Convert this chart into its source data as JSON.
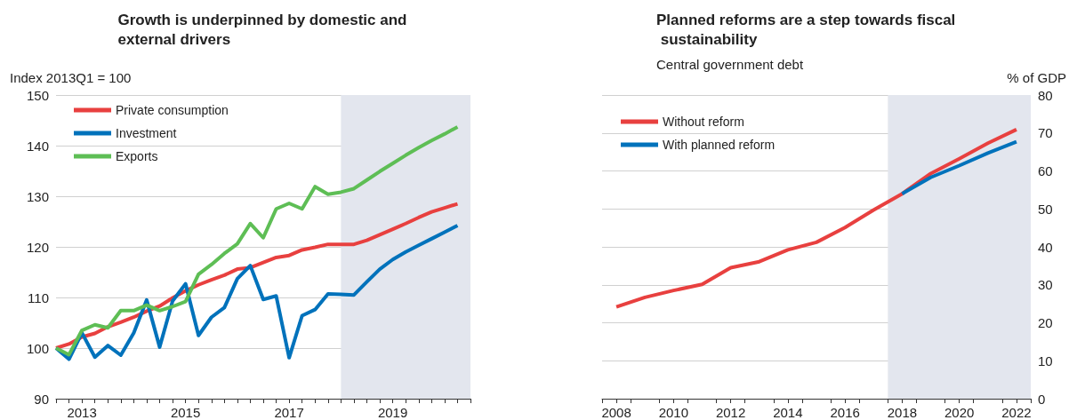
{
  "chart_data": [
    {
      "type": "line",
      "title": "Growth is underpinned by domestic and external drivers",
      "ylabel": "Index 2013Q1 = 100",
      "x": [
        2013,
        2013.25,
        2013.5,
        2013.75,
        2014,
        2014.25,
        2014.5,
        2014.75,
        2015,
        2015.25,
        2015.5,
        2015.75,
        2016,
        2016.25,
        2016.5,
        2016.75,
        2017,
        2017.25,
        2017.5,
        2017.75,
        2018,
        2018.25,
        2018.5,
        2018.75,
        2019,
        2019.25,
        2019.5,
        2019.75,
        2020,
        2020.25,
        2020.5,
        2020.75
      ],
      "series": [
        {
          "name": "Private consumption",
          "color": "#e8403f",
          "values": [
            100,
            100.8,
            102.2,
            102.9,
            104.2,
            105.1,
            106.1,
            107.3,
            108.3,
            109.9,
            111.3,
            112.5,
            113.5,
            114.4,
            115.6,
            115.9,
            116.9,
            117.9,
            118.3,
            119.4,
            119.9,
            120.5,
            120.5,
            120.5,
            121.3,
            122.4,
            123.5,
            124.6,
            125.8,
            126.9,
            127.7,
            128.5
          ]
        },
        {
          "name": "Investment",
          "color": "#0072bb",
          "values": [
            100,
            97.8,
            103,
            98.2,
            100.5,
            98.6,
            103,
            109.5,
            100.2,
            109.3,
            112.7,
            102.5,
            106.1,
            108,
            113.7,
            116.3,
            109.6,
            110.3,
            98.1,
            106.4,
            107.6,
            110.7,
            110.6,
            110.5,
            113.1,
            115.6,
            117.5,
            119,
            120.3,
            121.6,
            122.9,
            124.2
          ]
        },
        {
          "name": "Exports",
          "color": "#5ebe55",
          "values": [
            100,
            98.7,
            103.5,
            104.6,
            104,
            107.4,
            107.4,
            108.5,
            107.4,
            108.2,
            109.2,
            114.6,
            116.5,
            118.7,
            120.6,
            124.6,
            121.8,
            127.5,
            128.6,
            127.5,
            131.9,
            130.4,
            130.8,
            131.5,
            133.2,
            134.9,
            136.5,
            138.1,
            139.6,
            141,
            142.3,
            143.7
          ]
        }
      ],
      "xlim": [
        2013,
        2021
      ],
      "xticks": [
        {
          "value": 2013,
          "label": null
        },
        {
          "value": 2013.25,
          "label": null
        },
        {
          "value": 2013.5,
          "label": "2013"
        },
        {
          "value": 2013.75,
          "label": null
        },
        {
          "value": 2014,
          "label": null
        },
        {
          "value": 2014.25,
          "label": null
        },
        {
          "value": 2014.5,
          "label": null
        },
        {
          "value": 2014.75,
          "label": null
        },
        {
          "value": 2015,
          "label": null
        },
        {
          "value": 2015.25,
          "label": null
        },
        {
          "value": 2015.5,
          "label": "2015"
        },
        {
          "value": 2015.75,
          "label": null
        },
        {
          "value": 2016,
          "label": null
        },
        {
          "value": 2016.25,
          "label": null
        },
        {
          "value": 2016.5,
          "label": null
        },
        {
          "value": 2016.75,
          "label": null
        },
        {
          "value": 2017,
          "label": null
        },
        {
          "value": 2017.25,
          "label": null
        },
        {
          "value": 2017.5,
          "label": "2017"
        },
        {
          "value": 2017.75,
          "label": null
        },
        {
          "value": 2018,
          "label": null
        },
        {
          "value": 2018.25,
          "label": null
        },
        {
          "value": 2018.5,
          "label": null
        },
        {
          "value": 2018.75,
          "label": null
        },
        {
          "value": 2019,
          "label": null
        },
        {
          "value": 2019.25,
          "label": null
        },
        {
          "value": 2019.5,
          "label": "2019"
        },
        {
          "value": 2019.75,
          "label": null
        },
        {
          "value": 2020,
          "label": null
        },
        {
          "value": 2020.25,
          "label": null
        },
        {
          "value": 2020.5,
          "label": null
        },
        {
          "value": 2020.75,
          "label": null
        },
        {
          "value": 2021,
          "label": null
        }
      ],
      "ylim": [
        90,
        150
      ],
      "yticks": [
        90,
        100,
        110,
        120,
        130,
        140,
        150
      ],
      "bands": [
        {
          "axis": "x",
          "from": 2018.5,
          "to": 2021,
          "color": "#e3e6ee"
        }
      ],
      "grid": "y",
      "legend": "top left",
      "marker": "none",
      "line_style": "solid"
    },
    {
      "type": "line",
      "title": "Planned reforms are a step towards fiscal sustainability",
      "subtitle": "Central government debt",
      "ylabel": "% of GDP",
      "x": [
        2008,
        2009,
        2010,
        2011,
        2012,
        2013,
        2014,
        2015,
        2016,
        2017,
        2018,
        2019,
        2020,
        2021,
        2022
      ],
      "series": [
        {
          "name": "Without reform",
          "color": "#e8403f",
          "values": [
            24.2,
            26.7,
            28.5,
            30.1,
            34.5,
            36.1,
            39.2,
            41.2,
            45.1,
            49.7,
            54,
            59.3,
            63.2,
            67.3,
            70.9
          ]
        },
        {
          "name": "With planned reform",
          "color": "#0072bb",
          "values": [
            null,
            null,
            null,
            null,
            null,
            null,
            null,
            null,
            null,
            null,
            54,
            58.3,
            61.4,
            64.7,
            67.7
          ]
        }
      ],
      "xlim": [
        2007.5,
        2022.5
      ],
      "xticks": [
        {
          "value": 2007.5,
          "label": null
        },
        {
          "value": 2008,
          "label": "2008"
        },
        {
          "value": 2008.5,
          "label": null
        },
        {
          "value": 2009.5,
          "label": null
        },
        {
          "value": 2010,
          "label": "2010"
        },
        {
          "value": 2010.5,
          "label": null
        },
        {
          "value": 2011.5,
          "label": null
        },
        {
          "value": 2012,
          "label": "2012"
        },
        {
          "value": 2012.5,
          "label": null
        },
        {
          "value": 2013.5,
          "label": null
        },
        {
          "value": 2014,
          "label": "2014"
        },
        {
          "value": 2014.5,
          "label": null
        },
        {
          "value": 2015.5,
          "label": null
        },
        {
          "value": 2016,
          "label": "2016"
        },
        {
          "value": 2016.5,
          "label": null
        },
        {
          "value": 2017.5,
          "label": null
        },
        {
          "value": 2018,
          "label": "2018"
        },
        {
          "value": 2018.5,
          "label": null
        },
        {
          "value": 2019.5,
          "label": null
        },
        {
          "value": 2020,
          "label": "2020"
        },
        {
          "value": 2020.5,
          "label": null
        },
        {
          "value": 2021.5,
          "label": null
        },
        {
          "value": 2022,
          "label": "2022"
        },
        {
          "value": 2022.5,
          "label": null
        }
      ],
      "ylim": [
        0,
        80
      ],
      "yticks": [
        0,
        10,
        20,
        30,
        40,
        50,
        60,
        70,
        80
      ],
      "bands": [
        {
          "axis": "x",
          "from": 2017.5,
          "to": 2022.5,
          "color": "#e3e6ee"
        }
      ],
      "grid": "y",
      "legend": "top left",
      "marker": "none",
      "line_style": "solid"
    }
  ]
}
